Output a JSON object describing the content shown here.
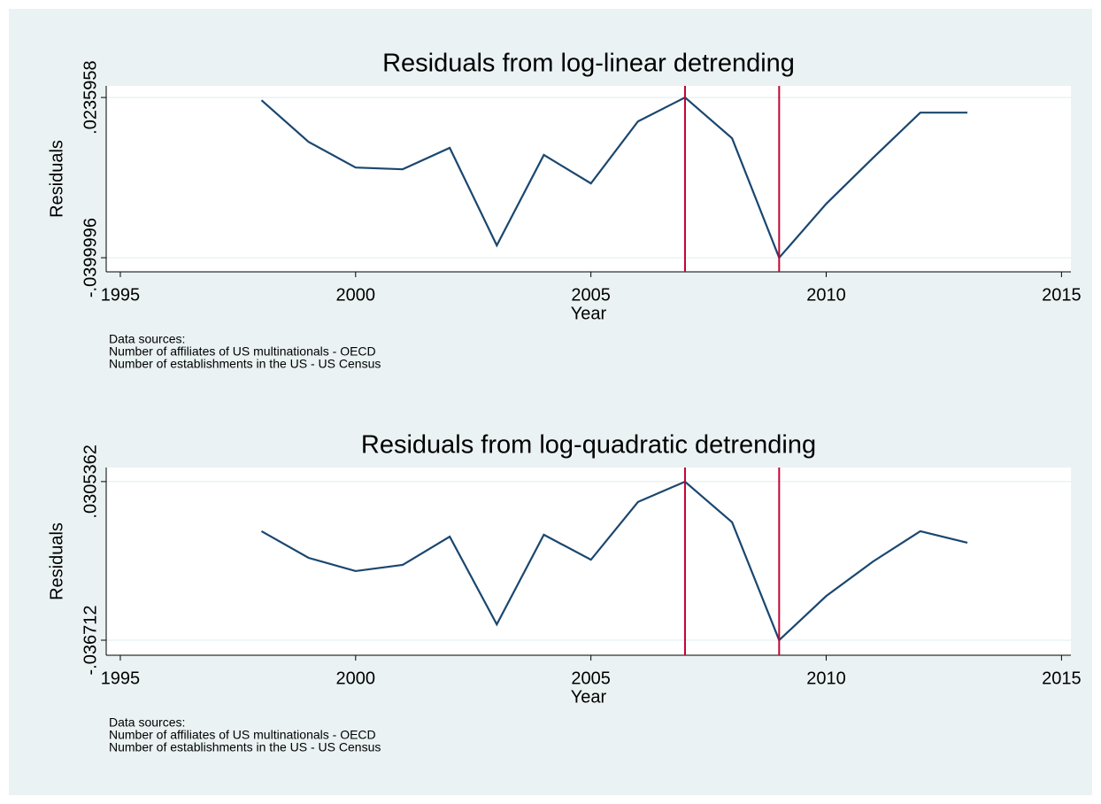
{
  "chart_data": [
    {
      "type": "line",
      "title": "Residuals from log-linear detrending",
      "x_label": "Year",
      "y_label": "Residuals",
      "x": [
        1998,
        1999,
        2000,
        2001,
        2002,
        2003,
        2004,
        2005,
        2006,
        2007,
        2008,
        2009,
        2010,
        2011,
        2012,
        2013
      ],
      "values": [
        0.0225,
        0.006,
        -0.0042,
        -0.0049,
        0.0036,
        -0.0351,
        0.0008,
        -0.0105,
        0.0141,
        0.0236,
        0.0074,
        -0.04,
        -0.0186,
        -0.0003,
        0.0176,
        0.0176
      ],
      "color": "#1a476f",
      "vlines": [
        2007,
        2009
      ],
      "vline_color": "#c10534",
      "xlim": [
        1994.7,
        2015.2
      ],
      "xticks": [
        1995,
        2000,
        2005,
        2010,
        2015
      ],
      "ylim": [
        -0.0456,
        0.0282
      ],
      "yticks": [
        {
          "value": -0.0399996,
          "label": "-.0399996"
        },
        {
          "value": 0.0235958,
          "label": ".0235958"
        }
      ],
      "grid": true,
      "notes": [
        "Data sources:",
        "Number of affiliates of US multinationals - OECD",
        "Number of establishments in the US - US Census"
      ]
    },
    {
      "type": "line",
      "title": "Residuals from log-quadratic detrending",
      "x_label": "Year",
      "y_label": "Residuals",
      "x": [
        1998,
        1999,
        2000,
        2001,
        2002,
        2003,
        2004,
        2005,
        2006,
        2007,
        2008,
        2009,
        2010,
        2011,
        2012,
        2013
      ],
      "values": [
        0.0095,
        -0.0018,
        -0.0074,
        -0.0048,
        0.0072,
        -0.03,
        0.008,
        -0.0026,
        0.0219,
        0.0305,
        0.0133,
        -0.0367,
        -0.018,
        -0.0033,
        0.0095,
        0.0046
      ],
      "color": "#1a476f",
      "vlines": [
        2007,
        2009
      ],
      "vline_color": "#c10534",
      "xlim": [
        1994.7,
        2015.2
      ],
      "xticks": [
        1995,
        2000,
        2005,
        2010,
        2015
      ],
      "ylim": [
        -0.0431,
        0.0365
      ],
      "yticks": [
        {
          "value": -0.036712,
          "label": "-.036712"
        },
        {
          "value": 0.0305362,
          "label": ".0305362"
        }
      ],
      "grid": true,
      "notes": [
        "Data sources:",
        "Number of affiliates of US multinationals - OECD",
        "Number of establishments in the US - US Census"
      ]
    }
  ]
}
